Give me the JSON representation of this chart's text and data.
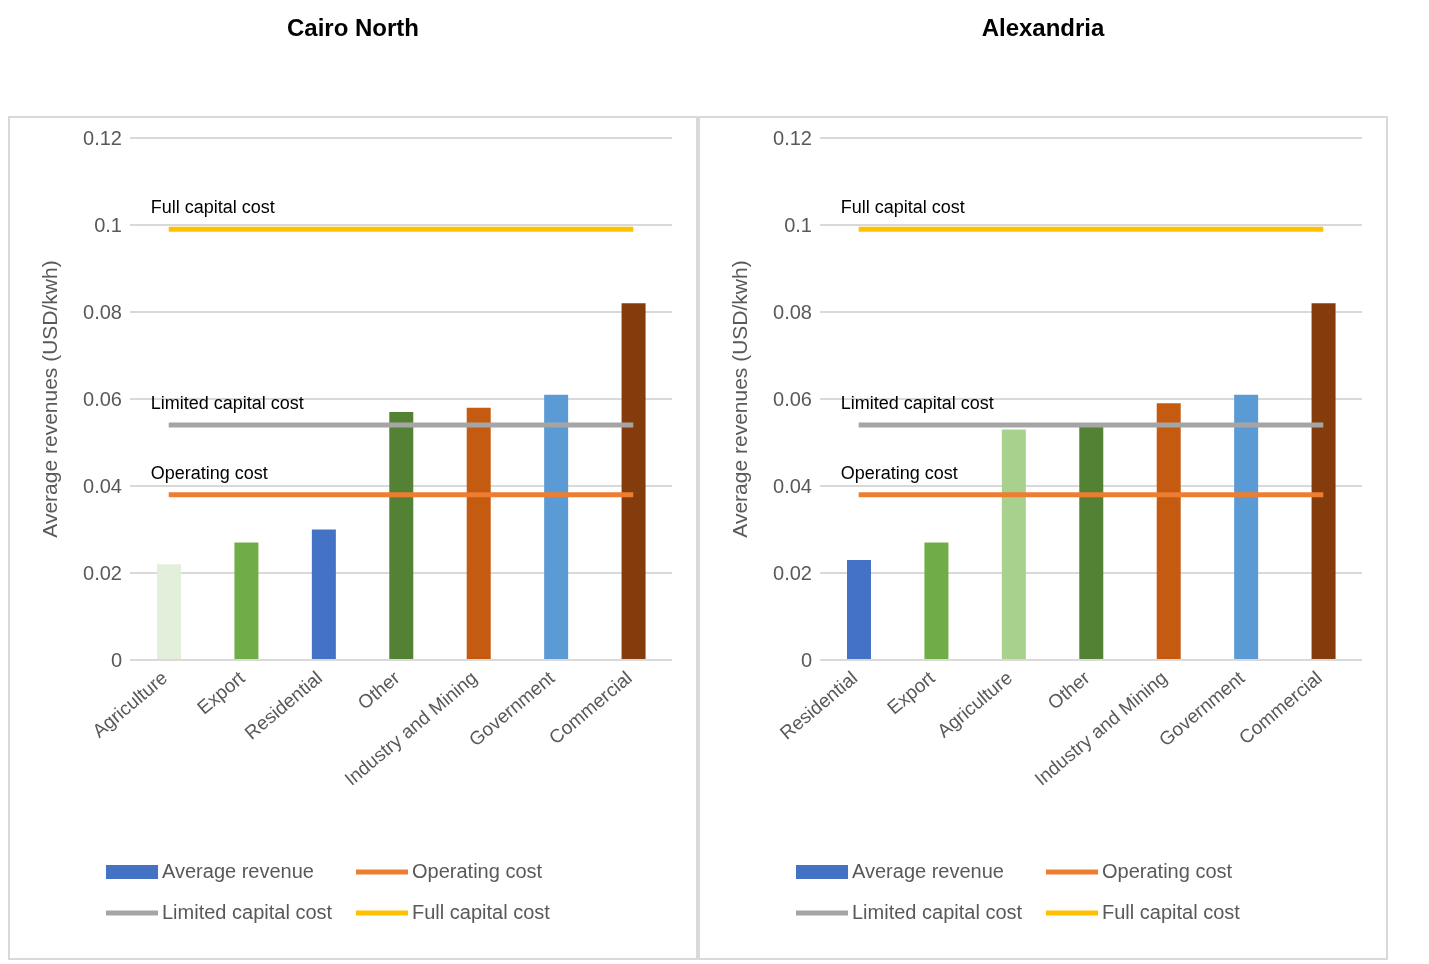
{
  "chart_data": [
    {
      "type": "bar",
      "title": "Cairo North",
      "ylabel": "Average revenues (USD/kwh)",
      "categories": [
        "Agriculture",
        "Export",
        "Residential",
        "Other",
        "Industry and Mining",
        "Government",
        "Commercial"
      ],
      "ylim": [
        0,
        0.12
      ],
      "yticks": [
        0,
        0.02,
        0.04,
        0.06,
        0.08,
        0.1,
        0.12
      ],
      "grid": "y",
      "legend": "bottom",
      "series": [
        {
          "name": "Average revenue",
          "color": "#4472c4",
          "colors": [
            "#e2efda",
            "#70ad47",
            "#4472c4",
            "#548235",
            "#c55a11",
            "#5b9bd5",
            "#843c0c"
          ],
          "values": [
            0.022,
            0.027,
            0.03,
            0.057,
            0.058,
            0.061,
            0.082
          ]
        },
        {
          "name": "Operating cost",
          "type": "line",
          "color": "#ed7d31",
          "values": [
            0.038,
            0.038,
            0.038,
            0.038,
            0.038,
            0.038,
            0.038
          ]
        },
        {
          "name": "Limited capital cost",
          "type": "line",
          "color": "#a5a5a5",
          "values": [
            0.054,
            0.054,
            0.054,
            0.054,
            0.054,
            0.054,
            0.054
          ]
        },
        {
          "name": "Full capital cost",
          "type": "line",
          "color": "#ffc000",
          "values": [
            0.099,
            0.099,
            0.099,
            0.099,
            0.099,
            0.099,
            0.099
          ]
        }
      ],
      "annotations": [
        {
          "text": "Full capital cost",
          "x": "Agriculture",
          "y": 0.099
        },
        {
          "text": "Limited capital cost",
          "x": "Agriculture",
          "y": 0.054
        },
        {
          "text": "Operating cost",
          "x": "Agriculture",
          "y": 0.038
        }
      ]
    },
    {
      "type": "bar",
      "title": "Alexandria",
      "ylabel": "Average revenues (USD/kwh)",
      "categories": [
        "Residential",
        "Export",
        "Agriculture",
        "Other",
        "Industry and Mining",
        "Government",
        "Commercial"
      ],
      "ylim": [
        0,
        0.12
      ],
      "yticks": [
        0,
        0.02,
        0.04,
        0.06,
        0.08,
        0.1,
        0.12
      ],
      "grid": "y",
      "legend": "bottom",
      "series": [
        {
          "name": "Average revenue",
          "color": "#4472c4",
          "colors": [
            "#4472c4",
            "#70ad47",
            "#a9d18e",
            "#548235",
            "#c55a11",
            "#5b9bd5",
            "#843c0c"
          ],
          "values": [
            0.023,
            0.027,
            0.053,
            0.054,
            0.059,
            0.061,
            0.082
          ]
        },
        {
          "name": "Operating cost",
          "type": "line",
          "color": "#ed7d31",
          "values": [
            0.038,
            0.038,
            0.038,
            0.038,
            0.038,
            0.038,
            0.038
          ]
        },
        {
          "name": "Limited capital cost",
          "type": "line",
          "color": "#a5a5a5",
          "values": [
            0.054,
            0.054,
            0.054,
            0.054,
            0.054,
            0.054,
            0.054
          ]
        },
        {
          "name": "Full capital cost",
          "type": "line",
          "color": "#ffc000",
          "values": [
            0.099,
            0.099,
            0.099,
            0.099,
            0.099,
            0.099,
            0.099
          ]
        }
      ],
      "annotations": [
        {
          "text": "Full capital cost",
          "x": "Residential",
          "y": 0.099
        },
        {
          "text": "Limited capital cost",
          "x": "Residential",
          "y": 0.054
        },
        {
          "text": "Operating cost",
          "x": "Residential",
          "y": 0.038
        }
      ]
    }
  ]
}
